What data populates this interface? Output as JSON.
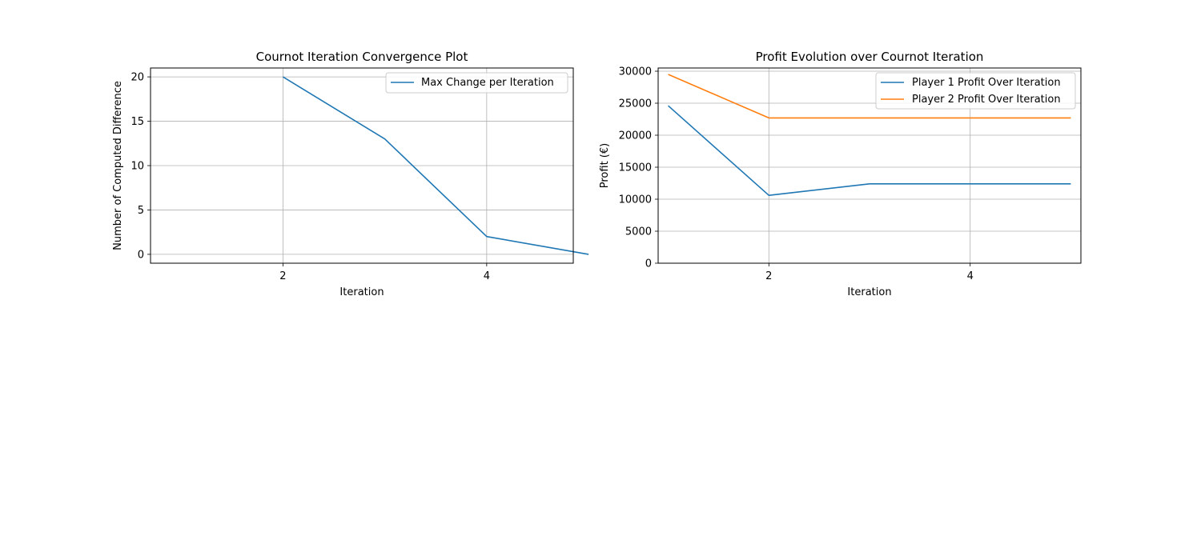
{
  "chart_data": [
    {
      "type": "line",
      "title": "Cournot Iteration Convergence Plot",
      "xlabel": "Iteration",
      "ylabel": "Number of Computed Difference",
      "xlim": [
        0.7,
        4.85
      ],
      "ylim": [
        -1,
        21
      ],
      "xticks": [
        2,
        4
      ],
      "yticks": [
        0,
        5,
        10,
        15,
        20
      ],
      "grid": true,
      "legend_position": "top-right",
      "series": [
        {
          "name": "Max Change per Iteration",
          "color": "#1f77b4",
          "x": [
            2,
            3,
            4,
            5
          ],
          "y": [
            20,
            13,
            2,
            0
          ]
        }
      ]
    },
    {
      "type": "line",
      "title": "Profit Evolution over Cournot Iteration",
      "xlabel": "Iteration",
      "ylabel": "Profit (€)",
      "xlim": [
        0.9,
        5.1
      ],
      "ylim": [
        0,
        30500
      ],
      "xticks": [
        2,
        4
      ],
      "yticks": [
        0,
        5000,
        10000,
        15000,
        20000,
        25000,
        30000
      ],
      "grid": true,
      "legend_position": "top-right",
      "series": [
        {
          "name": "Player 1 Profit Over Iteration",
          "color": "#1f77b4",
          "x": [
            1,
            2,
            3,
            4,
            5
          ],
          "y": [
            24600,
            10600,
            12400,
            12400,
            12400
          ]
        },
        {
          "name": "Player 2 Profit Over Iteration",
          "color": "#ff7f0e",
          "x": [
            1,
            2,
            3,
            4,
            5
          ],
          "y": [
            29500,
            22700,
            22700,
            22700,
            22700
          ]
        }
      ]
    }
  ]
}
